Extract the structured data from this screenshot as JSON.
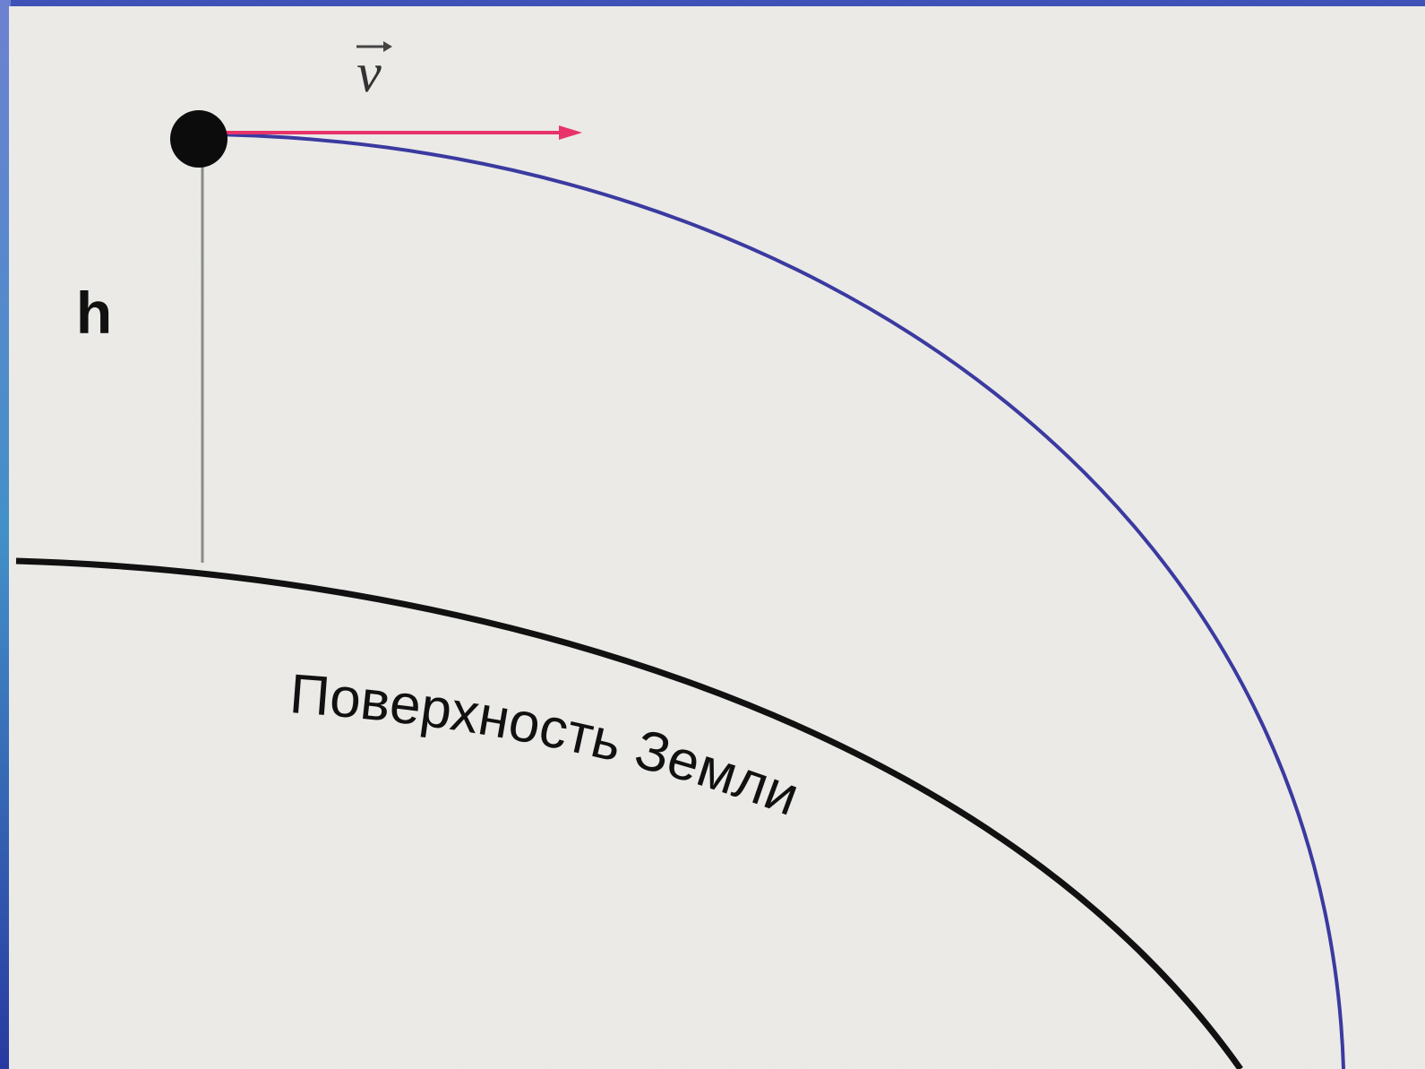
{
  "labels": {
    "velocity": "v",
    "height": "h",
    "surface": "Поверхность Земли"
  }
}
